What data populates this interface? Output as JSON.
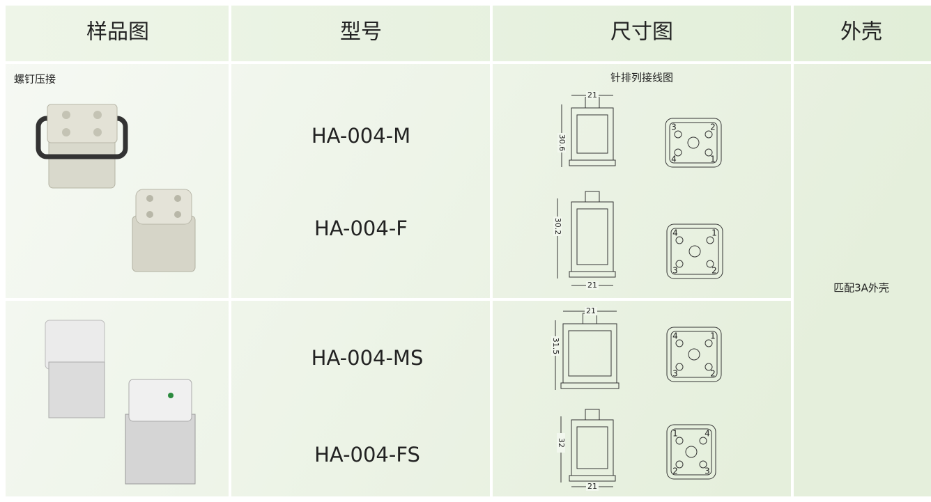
{
  "header": {
    "columns": [
      "样品图",
      "型号",
      "尺寸图",
      "外壳"
    ]
  },
  "rows": [
    {
      "sample_label": "螺钉压接",
      "models": [
        "HA-004-M",
        "HA-004-F"
      ]
    },
    {
      "models": [
        "HA-004-MS",
        "HA-004-FS"
      ]
    }
  ],
  "drawings": {
    "title": "针排列接线图",
    "items": [
      {
        "width": 21,
        "height": 30.6,
        "pins": [
          "3",
          "2",
          "4",
          "1"
        ]
      },
      {
        "width": 21,
        "height": 30.2,
        "pins": [
          "4",
          "1",
          "3",
          "2"
        ]
      },
      {
        "width": 21,
        "height": 31.5,
        "pins": [
          "4",
          "1",
          "3",
          "2"
        ]
      },
      {
        "width": 21,
        "height": 32,
        "pins": [
          "1",
          "4",
          "2",
          "3"
        ]
      }
    ]
  },
  "housing": "匹配3A外壳"
}
